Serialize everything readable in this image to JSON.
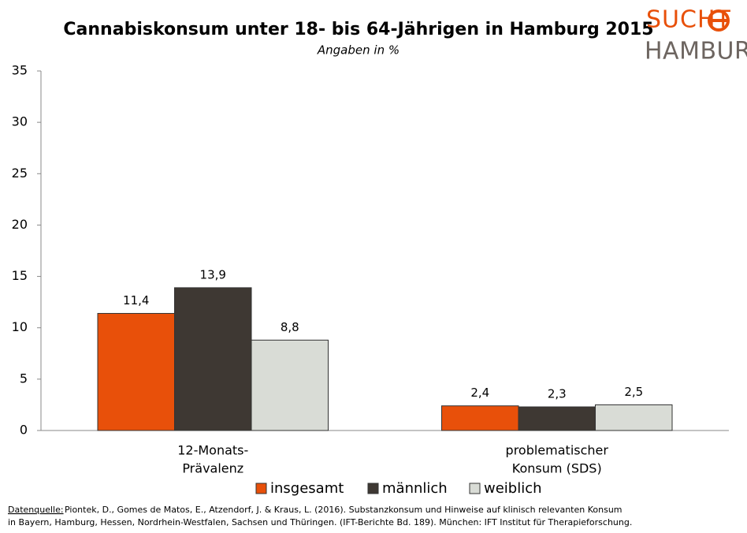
{
  "chart_data": {
    "type": "bar",
    "title": "Cannabiskonsum unter 18- bis 64-Jährigen in Hamburg 2015",
    "subtitle": "Angaben in %",
    "categories": [
      [
        "12-Monats-",
        "Prävalenz"
      ],
      [
        "problematischer",
        "Konsum (SDS)"
      ]
    ],
    "series": [
      {
        "name": "insgesamt",
        "color": "#e8500a",
        "values": [
          11.4,
          2.4
        ],
        "value_labels": [
          "11,4",
          "2,4"
        ]
      },
      {
        "name": "männlich",
        "color": "#3e3833",
        "values": [
          13.9,
          2.3
        ],
        "value_labels": [
          "13,9",
          "2,3"
        ]
      },
      {
        "name": "weiblich",
        "color": "#d9dcd6",
        "values": [
          8.8,
          2.5
        ],
        "value_labels": [
          "8,8",
          "2,5"
        ]
      }
    ],
    "ylim": [
      0,
      35
    ],
    "yticks": [
      0,
      5,
      10,
      15,
      20,
      25,
      30,
      35
    ],
    "grid": false,
    "legend": "bottom"
  },
  "logo": [
    "SUCHT",
    "HAMBURG"
  ],
  "source": {
    "label": "Datenquelle:",
    "lines": [
      "Piontek, D., Gomes de Matos, E., Atzendorf, J. & Kraus, L. (2016). Substanzkonsum und Hinweise auf klinisch relevanten Konsum",
      "in Bayern, Hamburg, Hessen, Nordrhein-Westfalen, Sachsen und Thüringen. (IFT-Berichte Bd. 189). München: IFT Institut für Therapieforschung."
    ]
  }
}
